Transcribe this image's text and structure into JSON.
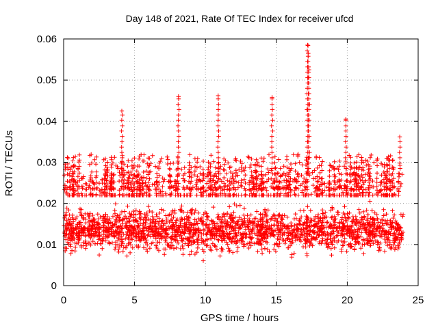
{
  "chart_data": {
    "type": "scatter",
    "title": "Day 148 of 2021, Rate Of TEC Index for receiver ufcd",
    "xlabel": "GPS time / hours",
    "ylabel": "ROTI / TECUs",
    "xlim": [
      0,
      25
    ],
    "ylim": [
      0,
      0.06
    ],
    "xticks": [
      "0",
      "5",
      "10",
      "15",
      "20",
      "25"
    ],
    "yticks": [
      "0",
      "0.01",
      "0.02",
      "0.03",
      "0.04",
      "0.05",
      "0.06"
    ],
    "grid": true,
    "marker": "+",
    "series": [
      {
        "name": "ROTI",
        "color": "#ff0000",
        "x_range": [
          0,
          23.95
        ],
        "dense_band": [
          0.005,
          0.022
        ],
        "typical_max": 0.032,
        "peaks": [
          {
            "x": 4.1,
            "y": 0.0425
          },
          {
            "x": 8.1,
            "y": 0.046
          },
          {
            "x": 10.9,
            "y": 0.0462
          },
          {
            "x": 14.7,
            "y": 0.0458
          },
          {
            "x": 17.2,
            "y": 0.0585
          },
          {
            "x": 17.25,
            "y": 0.0565
          },
          {
            "x": 17.3,
            "y": 0.0525
          },
          {
            "x": 19.9,
            "y": 0.0405
          },
          {
            "x": 23.7,
            "y": 0.0362
          }
        ]
      }
    ]
  }
}
